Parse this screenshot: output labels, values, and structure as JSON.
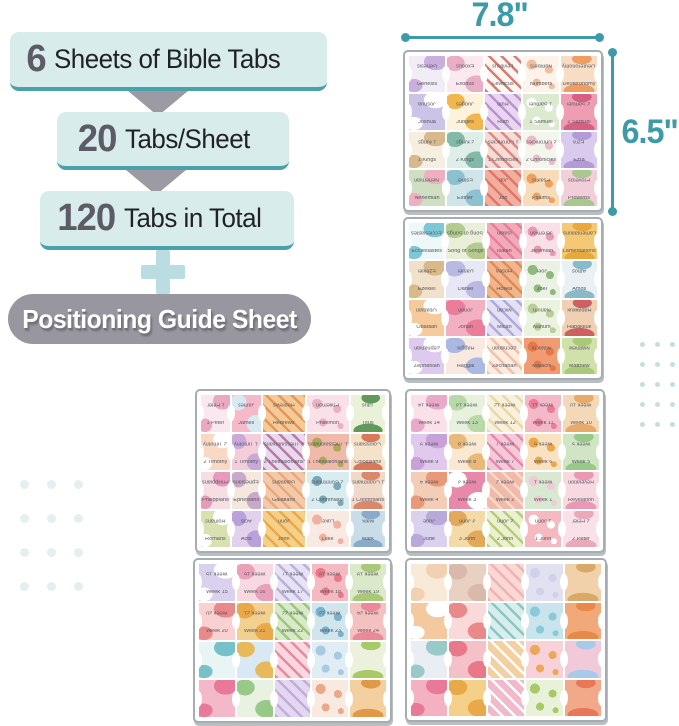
{
  "infographic": {
    "line1": {
      "number": "6",
      "text": "Sheets of Bible Tabs"
    },
    "line2": {
      "number": "20",
      "text": "Tabs/Sheet"
    },
    "line3": {
      "number": "120",
      "text": "Tabs in Total"
    },
    "guide_label": "Positioning Guide Sheet"
  },
  "dimensions": {
    "width_label": "7.8\"",
    "height_label": "6.5\""
  },
  "colors": {
    "teal_accent": "#3d9aa8",
    "banner_bg": "#d8ecec",
    "banner_underline": "#49a2ab",
    "arrow_gray": "#9c9aa3",
    "pill_bg": "#98969f",
    "number_gray": "#5d5c66",
    "dot_left": "#e4f0f0",
    "dot_right": "#c6dede",
    "sheet_border": "#a7abb2"
  },
  "decor": {
    "dots_left": {
      "rows": 4,
      "cols": 3
    },
    "dots_right": {
      "rows": 5,
      "cols": 3
    }
  },
  "sheets": [
    {
      "name": "old-testament-1",
      "tabs": [
        {
          "l": "Genesis",
          "b": "#f1ecf6",
          "a": "#c9aede"
        },
        {
          "l": "Exodus",
          "b": "#fae9ee",
          "a": "#e9aec6"
        },
        {
          "l": "Leviticus",
          "b": "#fdf7f2",
          "a": "#d97b74"
        },
        {
          "l": "Numbers",
          "b": "#fdf3ea",
          "a": "#f0bf9e"
        },
        {
          "l": "Deuteronomy",
          "b": "#f7ddc4",
          "a": "#ef9e61"
        },
        {
          "l": "Joshua",
          "b": "#cdc2e7",
          "a": "#ffffff"
        },
        {
          "l": "Judges",
          "b": "#fdf3dc",
          "a": "#f2b64f"
        },
        {
          "l": "Ruth",
          "b": "#e9d6f0",
          "a": "#bb91d2"
        },
        {
          "l": "1 Samuel",
          "b": "#dcead0",
          "a": "#ffffff"
        },
        {
          "l": "2 Samuel",
          "b": "#ef9db2",
          "a": "#d85f84"
        },
        {
          "l": "1 Kings",
          "b": "#f6efe0",
          "a": "#d8b88d"
        },
        {
          "l": "2 Kings",
          "b": "#dfeee8",
          "a": "#83b9a9"
        },
        {
          "l": "1 Chronicles",
          "b": "#f6dbd8",
          "a": "#dd8b7c"
        },
        {
          "l": "2 Chronicles",
          "b": "#f2f6ec",
          "a": "#eeb9c8"
        },
        {
          "l": "Ezra",
          "b": "#d9cbed",
          "a": "#b39bd9"
        },
        {
          "l": "Nehemiah",
          "b": "#cfe0c2",
          "a": "#eeb0c0"
        },
        {
          "l": "Esther",
          "b": "#cfe5ea",
          "a": "#8cc2cf"
        },
        {
          "l": "Job",
          "b": "#f2af9e",
          "a": "#e1756b"
        },
        {
          "l": "Psalms",
          "b": "#f8dcba",
          "a": "#eda25f"
        },
        {
          "l": "Proverbs",
          "b": "#f2cfd8",
          "a": "#a9c88f"
        }
      ]
    },
    {
      "name": "old-testament-2",
      "tabs": [
        {
          "l": "Ecclesiastes",
          "b": "#eef8f8",
          "a": "#7ec7d7"
        },
        {
          "l": "Song of Songs",
          "b": "#e9efd9",
          "a": "#b4cb8e"
        },
        {
          "l": "Isaiah",
          "b": "#f1aab8",
          "a": "#ea7d9a"
        },
        {
          "l": "Jeremiah",
          "b": "#f9e0e7",
          "a": "#e99ab2"
        },
        {
          "l": "Lamentations",
          "b": "#f4c874",
          "a": "#e9a83e"
        },
        {
          "l": "Ezekiel",
          "b": "#f1e0ca",
          "a": "#d9b987"
        },
        {
          "l": "Daniel",
          "b": "#e7e7f5",
          "a": "#b9b9e1"
        },
        {
          "l": "Hosea",
          "b": "#f2b68c",
          "a": "#e18a59"
        },
        {
          "l": "Joel",
          "b": "#ebf2e3",
          "a": "#90b980"
        },
        {
          "l": "Amos",
          "b": "#e9f1f4",
          "a": "#8ab9c8"
        },
        {
          "l": "Obadiah",
          "b": "#f6ca9b",
          "a": "#ffffff"
        },
        {
          "l": "Jonah",
          "b": "#f4b0c3",
          "a": "#e97d9a"
        },
        {
          "l": "Micah",
          "b": "#e3e1f3",
          "a": "#b1a9d9"
        },
        {
          "l": "Nahum",
          "b": "#eaf3dd",
          "a": "#b9cc99"
        },
        {
          "l": "Habakkuk",
          "b": "#efd0b3",
          "a": "#cc6161"
        },
        {
          "l": "Zephaniah",
          "b": "#dec9ef",
          "a": "#ffffff"
        },
        {
          "l": "Haggai",
          "b": "#f9e9e1",
          "a": "#a9b9e1"
        },
        {
          "l": "Zechariah",
          "b": "#fcebe0",
          "a": "#f1c1a1"
        },
        {
          "l": "Malachi",
          "b": "#f09b71",
          "a": "#e1794b"
        },
        {
          "l": "Matthew",
          "b": "#d0e1a9",
          "a": "#a9c979"
        }
      ]
    },
    {
      "name": "new-testament-1",
      "tabs": [
        {
          "l": "1 Peter",
          "b": "#f9e9ef",
          "a": "#e9a9c1"
        },
        {
          "l": "James",
          "b": "#f6b9c9",
          "a": "#d9e9f1"
        },
        {
          "l": "Hebrews",
          "b": "#f6c998",
          "a": "#e19959"
        },
        {
          "l": "Philemon",
          "b": "#f9e1e7",
          "a": "#e9b1c1"
        },
        {
          "l": "Titus",
          "b": "#e9f1d9",
          "a": "#609959"
        },
        {
          "l": "2 Timothy",
          "b": "#f9d9c3",
          "a": "#ffffff"
        },
        {
          "l": "1 Timothy",
          "b": "#f4cdda",
          "a": "#c9a9d9"
        },
        {
          "l": "2 Thessalonians",
          "b": "#e9d9ed",
          "a": "#b979a9"
        },
        {
          "l": "1 Thessalonians",
          "b": "#f1b9a9",
          "a": "#a9a959"
        },
        {
          "l": "Colossians",
          "b": "#f4e3c9",
          "a": "#d97959"
        },
        {
          "l": "Philippians",
          "b": "#f6dee3",
          "a": "#e999b9"
        },
        {
          "l": "Ephesians",
          "b": "#f4e7db",
          "a": "#c9a9c9"
        },
        {
          "l": "Galatians",
          "b": "#f3c9a9",
          "a": "#e9a979"
        },
        {
          "l": "2 Corinthians",
          "b": "#d9edf1",
          "a": "#79a9b9"
        },
        {
          "l": "1 Corinthians",
          "b": "#f1d9c9",
          "a": "#d98969"
        },
        {
          "l": "Romans",
          "b": "#d9e1b1",
          "a": "#ffffff"
        },
        {
          "l": "Acts",
          "b": "#e1d1ed",
          "a": "#b9a1d9"
        },
        {
          "l": "John",
          "b": "#f6d089",
          "a": "#e9a949"
        },
        {
          "l": "Luke",
          "b": "#f9e9e3",
          "a": "#f1b1a1"
        },
        {
          "l": "Mark",
          "b": "#c9dde9",
          "a": "#89abc9"
        }
      ]
    },
    {
      "name": "new-testament-2-weeks",
      "tabs": [
        {
          "l": "Week 14",
          "b": "#f9e0e9",
          "a": "#e9a9c9"
        },
        {
          "l": "Week 13",
          "b": "#e7f1dd",
          "a": "#b9d9a9"
        },
        {
          "l": "Week 12",
          "b": "#f9f1dd",
          "a": "#e9d9a9"
        },
        {
          "l": "Week 11",
          "b": "#f4b9c9",
          "a": "#e97d99"
        },
        {
          "l": "Week 10",
          "b": "#f4d9b9",
          "a": "#e9a969"
        },
        {
          "l": "Week 9",
          "b": "#e1c9ed",
          "a": "#c9a1d9"
        },
        {
          "l": "Week 8",
          "b": "#f9e9d1",
          "a": "#e9b979"
        },
        {
          "l": "Week 7",
          "b": "#f4c9d9",
          "a": "#e989a9"
        },
        {
          "l": "Week 6",
          "b": "#f9e1c1",
          "a": "#e9a949"
        },
        {
          "l": "Week 5",
          "b": "#d0e5c3",
          "a": "#99c989"
        },
        {
          "l": "Week 4",
          "b": "#f4cdb9",
          "a": "#e99979"
        },
        {
          "l": "Week 3",
          "b": "#e989a9",
          "a": "#ffffff"
        },
        {
          "l": "Week 2",
          "b": "#f1b9a9",
          "a": "#f9d9c9"
        },
        {
          "l": "Week 1",
          "b": "#d9e9d1",
          "a": "#f1c9d9"
        },
        {
          "l": "Revelation",
          "b": "#f9d9e1",
          "a": "#e999b1"
        },
        {
          "l": "Jude",
          "b": "#d9d1ed",
          "a": "#b9a9d9"
        },
        {
          "l": "3 John",
          "b": "#f4d9a9",
          "a": "#e1a959"
        },
        {
          "l": "2 John",
          "b": "#e9f1d1",
          "a": "#b9cc79"
        },
        {
          "l": "1 John",
          "b": "#f4b9c1",
          "a": "#ffffff"
        },
        {
          "l": "2 Peter",
          "b": "#f9e1e9",
          "a": "#e9a9b9"
        }
      ]
    },
    {
      "name": "weeks-and-blank",
      "tabs": [
        {
          "l": "Week 15",
          "b": "#d9d1ed",
          "a": "#ffffff"
        },
        {
          "l": "Week 16",
          "b": "#f9d9e1",
          "a": "#e9a1b9"
        },
        {
          "l": "Week 17",
          "b": "#e7e3f4",
          "a": "#b9b1d9"
        },
        {
          "l": "Week 18",
          "b": "#f4b9c1",
          "a": "#e97989"
        },
        {
          "l": "Week 19",
          "b": "#d9e9c9",
          "a": "#a9c979"
        },
        {
          "l": "Week 20",
          "b": "#f9d1d1",
          "a": "#e98989"
        },
        {
          "l": "Week 21",
          "b": "#f4d090",
          "a": "#e9a949"
        },
        {
          "l": "Week 22",
          "b": "#d9e9c9",
          "a": "#99c979"
        },
        {
          "l": "Week 23",
          "b": "#d0e5ec",
          "a": "#79b1c9"
        },
        {
          "l": "Week 24",
          "b": "#f4c1c1",
          "a": "#e98999"
        },
        {
          "l": "",
          "b": "#e9f4f4",
          "a": "#79c1c9"
        },
        {
          "l": "",
          "b": "#d9e9f4",
          "a": "#e9b959"
        },
        {
          "l": "",
          "b": "#f9d9e1",
          "a": "#e98999"
        },
        {
          "l": "",
          "b": "#e1edf4",
          "a": "#a9c9e1"
        },
        {
          "l": "",
          "b": "#ebf1dd",
          "a": "#a9c969"
        },
        {
          "l": "",
          "b": "#f4b9c9",
          "a": "#e97999"
        },
        {
          "l": "",
          "b": "#e9f1e1",
          "a": "#99c989"
        },
        {
          "l": "",
          "b": "#e1d9f1",
          "a": "#c9a9d9"
        },
        {
          "l": "",
          "b": "#f9e9e1",
          "a": "#e9a989"
        },
        {
          "l": "",
          "b": "#f4d0a0",
          "a": "#e09949"
        }
      ]
    },
    {
      "name": "blank-sheet",
      "tabs": [
        {
          "l": "",
          "b": "#f9e9d9",
          "a": "#f1d1b1"
        },
        {
          "l": "",
          "b": "#e9d1c1",
          "a": "#d9b9a9"
        },
        {
          "l": "",
          "b": "#f9d9d1",
          "a": "#f1b1b9"
        },
        {
          "l": "",
          "b": "#e1e1f1",
          "a": "#d1d1e9"
        },
        {
          "l": "",
          "b": "#f1d1a9",
          "a": "#d9a969"
        },
        {
          "l": "",
          "b": "#f4c9a0",
          "a": "#ffffff"
        },
        {
          "l": "",
          "b": "#f9d9d9",
          "a": "#e98989"
        },
        {
          "l": "",
          "b": "#d9edf1",
          "a": "#89c9b9"
        },
        {
          "l": "",
          "b": "#c9e4ec",
          "a": "#89c9d9"
        },
        {
          "l": "",
          "b": "#f1a979",
          "a": "#e98949"
        },
        {
          "l": "",
          "b": "#e9edf4",
          "a": "#99c9c9"
        },
        {
          "l": "",
          "b": "#f4c1c9",
          "a": "#e97989"
        },
        {
          "l": "",
          "b": "#f4d0a0",
          "a": "#ffffff"
        },
        {
          "l": "",
          "b": "#f9d1d9",
          "a": "#e9a959"
        },
        {
          "l": "",
          "b": "#f1c9d9",
          "a": "#a9c9e9"
        },
        {
          "l": "",
          "b": "#f4b1c1",
          "a": "#e97999"
        },
        {
          "l": "",
          "b": "#f4d089",
          "a": "#e9a949"
        },
        {
          "l": "",
          "b": "#f1b9c9",
          "a": "#ffffff"
        },
        {
          "l": "",
          "b": "#e9f1d9",
          "a": "#a9c969"
        },
        {
          "l": "",
          "b": "#f1a989",
          "a": "#e97859"
        }
      ]
    }
  ]
}
